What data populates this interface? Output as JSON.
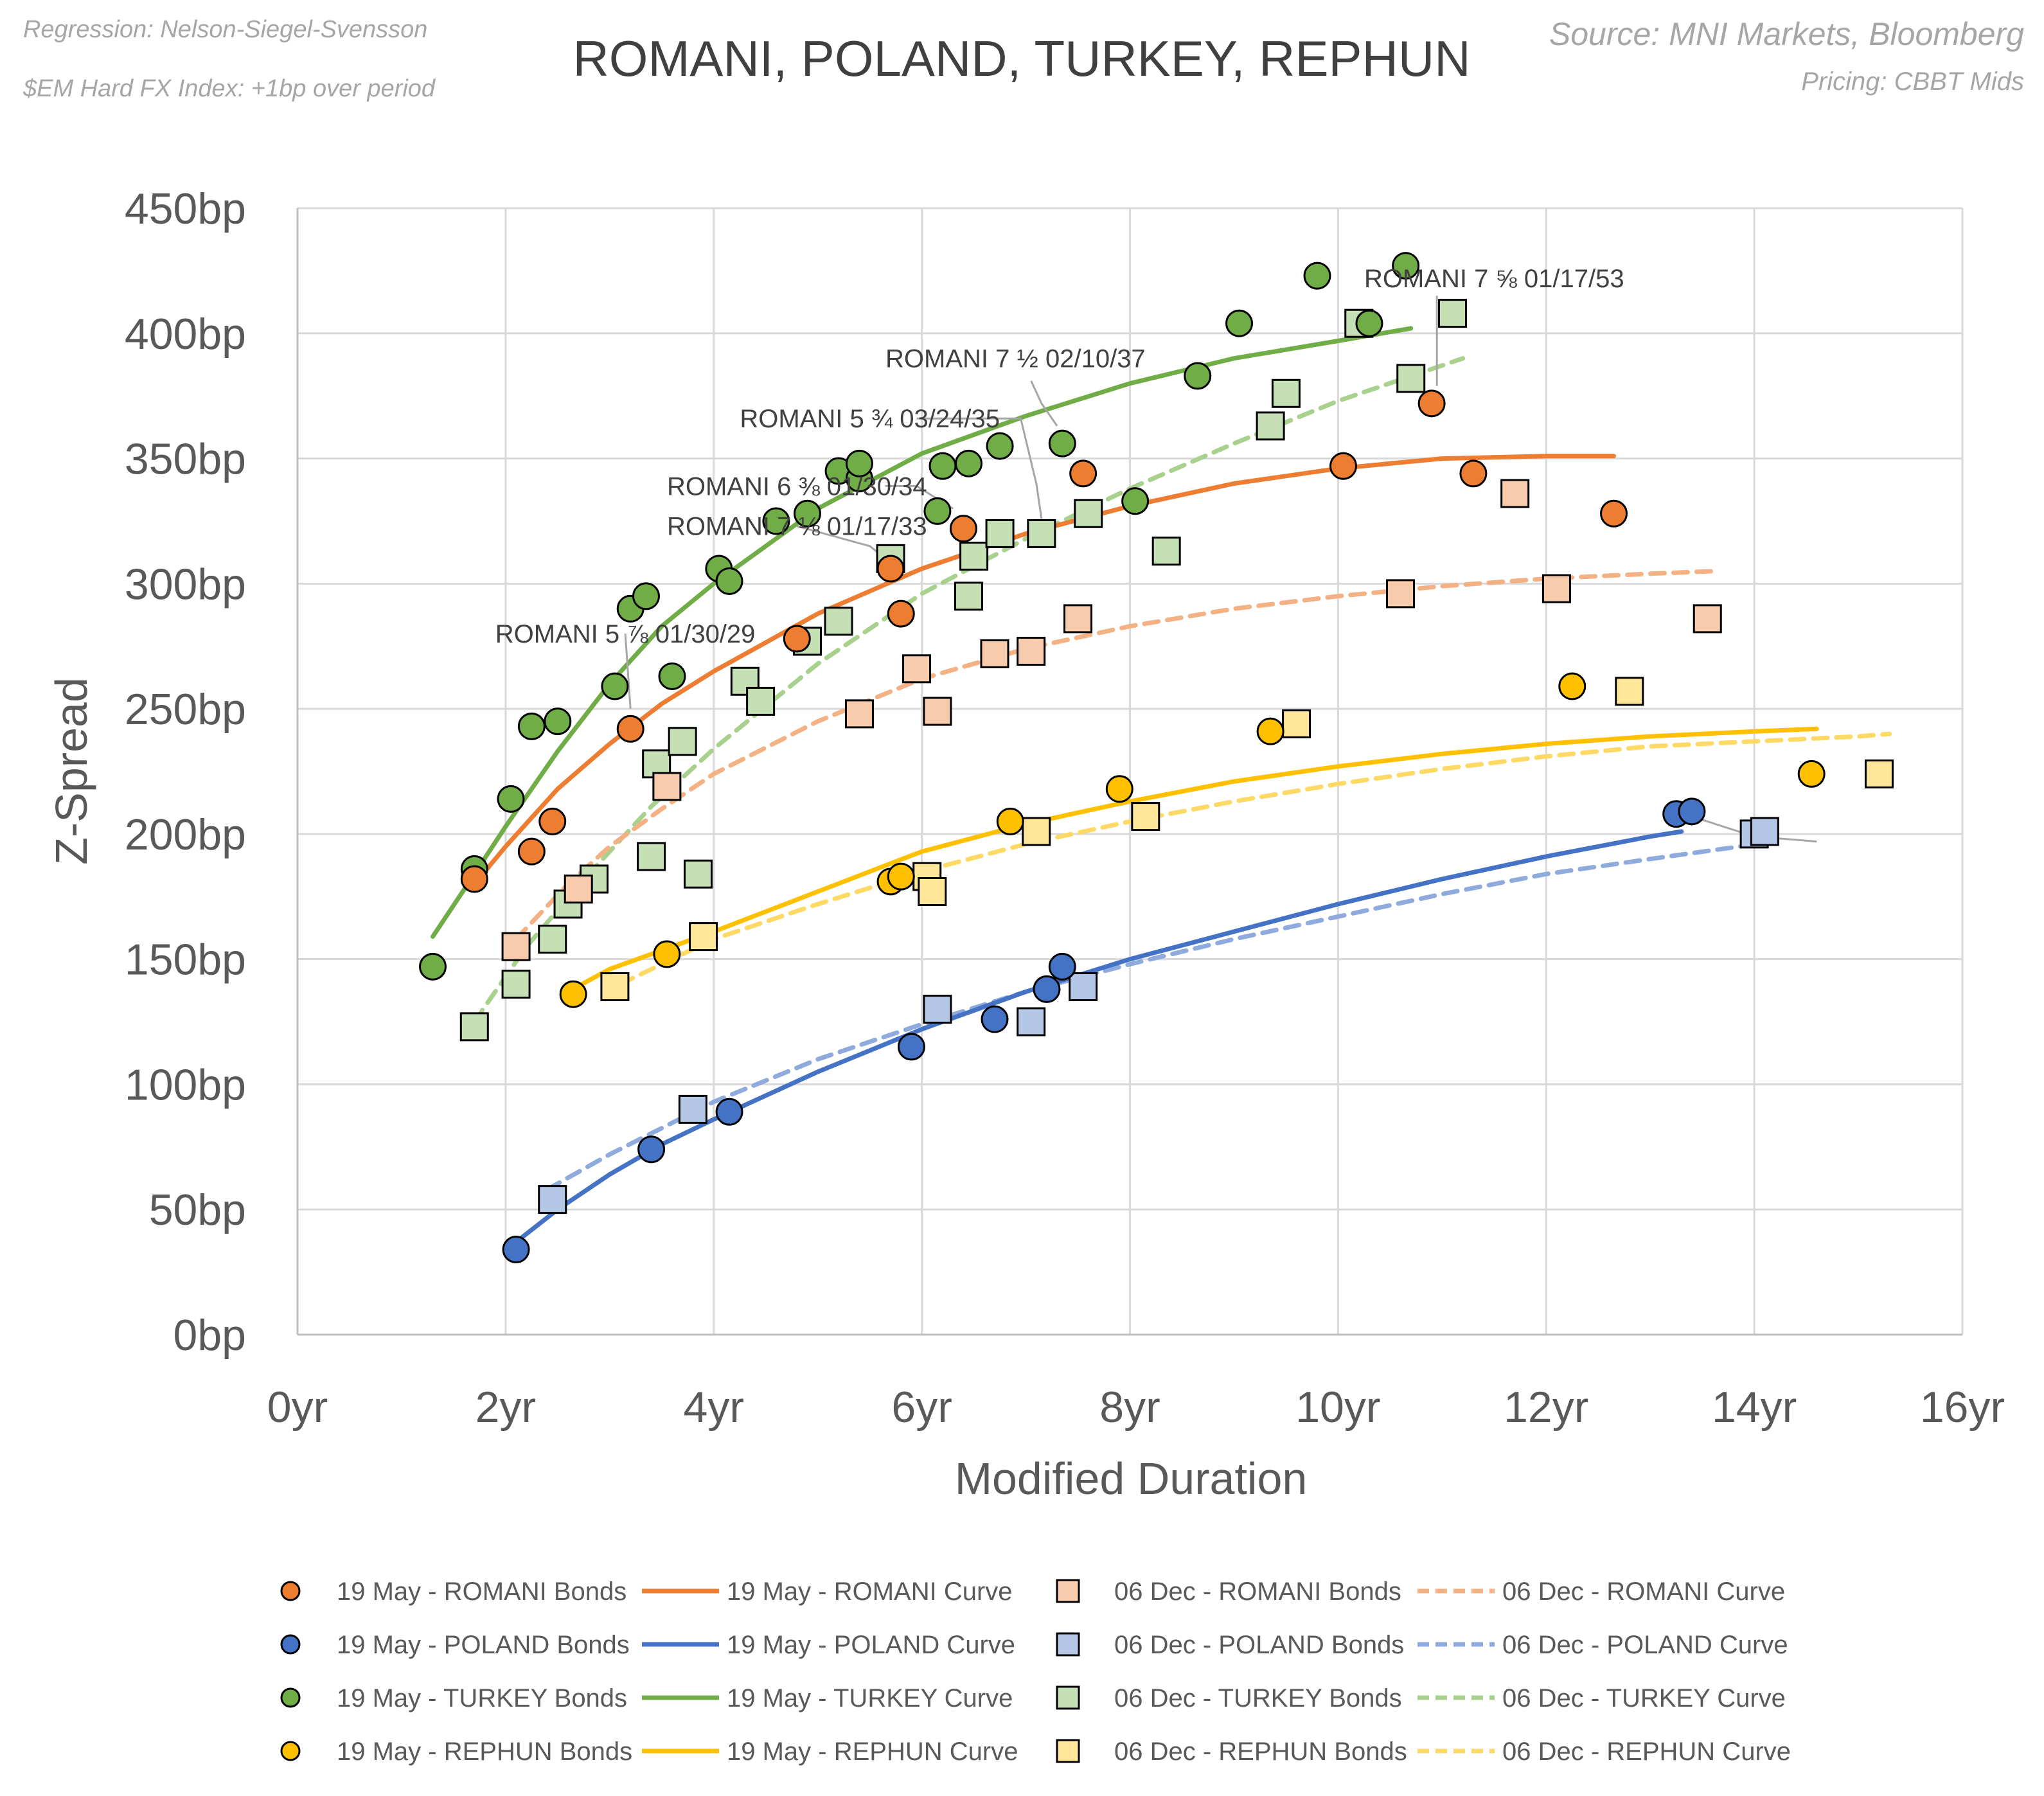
{
  "header": {
    "title": "ROMANI, POLAND, TURKEY, REPHUN",
    "regression_note": "Regression: Nelson-Siegel-Svensson",
    "index_note": "$EM Hard FX Index: +1bp over period",
    "source": "Source: MNI Markets, Bloomberg",
    "pricing": "Pricing: CBBT Mids"
  },
  "colors": {
    "romani_may": "#ED7D31",
    "romani_dec": "#F8CBAD",
    "romani_dec_line": "#F4B183",
    "poland_may": "#4472C4",
    "poland_dec": "#B4C7E7",
    "poland_dec_line": "#8FAADC",
    "turkey_may": "#70AD47",
    "turkey_dec": "#C5E0B4",
    "turkey_dec_line": "#A9D18E",
    "rephun_may": "#FFC000",
    "rephun_dec": "#FFE699",
    "rephun_dec_line": "#FFD966",
    "grid": "#D9D9D9",
    "axis_text": "#595959"
  },
  "chart_data": {
    "type": "scatter",
    "title": "ROMANI, POLAND, TURKEY, REPHUN",
    "xlabel": "Modified Duration",
    "ylabel": "Z-Spread",
    "xlim": [
      0,
      16
    ],
    "ylim": [
      0,
      450
    ],
    "xticks": [
      0,
      2,
      4,
      6,
      8,
      10,
      12,
      14,
      16
    ],
    "yticks": [
      0,
      50,
      100,
      150,
      200,
      250,
      300,
      350,
      400,
      450
    ],
    "xtick_labels": [
      "0yr",
      "2yr",
      "4yr",
      "6yr",
      "8yr",
      "10yr",
      "12yr",
      "14yr",
      "16yr"
    ],
    "ytick_labels": [
      "0bp",
      "50bp",
      "100bp",
      "150bp",
      "200bp",
      "250bp",
      "300bp",
      "350bp",
      "400bp",
      "450bp"
    ],
    "grid": true,
    "legend_position": "bottom",
    "series": [
      {
        "name": "06 Dec - TURKEY Curve",
        "kind": "curve",
        "date": "dec",
        "color": "#A9D18E",
        "dash": true,
        "x": [
          1.7,
          2.2,
          2.8,
          3.4,
          4.0,
          5.0,
          6.0,
          7.0,
          8.0,
          9.0,
          10.0,
          11.2
        ],
        "y": [
          125,
          155,
          184,
          211,
          234,
          268,
          296,
          318,
          338,
          356,
          373,
          390
        ]
      },
      {
        "name": "06 Dec - ROMANI Curve",
        "kind": "curve",
        "date": "dec",
        "color": "#F4B183",
        "dash": true,
        "x": [
          2.1,
          2.6,
          3.0,
          3.5,
          4.0,
          5.0,
          6.0,
          7.0,
          8.0,
          9.0,
          10.0,
          11.0,
          12.0,
          13.0,
          13.6
        ],
        "y": [
          158,
          180,
          195,
          210,
          224,
          245,
          262,
          274,
          283,
          290,
          295,
          299,
          302,
          304,
          305
        ]
      },
      {
        "name": "06 Dec - REPHUN Curve",
        "kind": "curve",
        "date": "dec",
        "color": "#FFD966",
        "dash": true,
        "x": [
          3.1,
          4.0,
          5.0,
          6.0,
          7.0,
          8.0,
          9.0,
          10.0,
          11.0,
          12.0,
          13.0,
          14.0,
          15.0,
          15.3
        ],
        "y": [
          140,
          158,
          172,
          185,
          196,
          205,
          213,
          220,
          226,
          231,
          235,
          237,
          239,
          240
        ]
      },
      {
        "name": "06 Dec - POLAND Curve",
        "kind": "curve",
        "date": "dec",
        "color": "#8FAADC",
        "dash": true,
        "x": [
          2.4,
          3.0,
          4.0,
          5.0,
          6.0,
          7.0,
          8.0,
          9.0,
          10.0,
          11.0,
          12.0,
          13.0,
          14.2
        ],
        "y": [
          58,
          72,
          93,
          110,
          124,
          137,
          148,
          158,
          167,
          176,
          184,
          190,
          197
        ]
      },
      {
        "name": "19 May - TURKEY Curve",
        "kind": "curve",
        "date": "may",
        "color": "#70AD47",
        "dash": false,
        "x": [
          1.3,
          1.7,
          2.0,
          2.5,
          3.0,
          3.5,
          4.0,
          5.0,
          6.0,
          7.0,
          8.0,
          9.0,
          10.0,
          10.7
        ],
        "y": [
          159,
          184,
          203,
          233,
          260,
          283,
          300,
          330,
          352,
          367,
          380,
          390,
          397,
          402
        ]
      },
      {
        "name": "19 May - ROMANI Curve",
        "kind": "curve",
        "date": "may",
        "color": "#ED7D31",
        "dash": false,
        "x": [
          1.7,
          2.0,
          2.5,
          3.0,
          3.5,
          4.0,
          5.0,
          6.0,
          7.0,
          8.0,
          9.0,
          10.0,
          11.0,
          12.0,
          12.65
        ],
        "y": [
          180,
          195,
          218,
          236,
          252,
          265,
          288,
          306,
          320,
          331,
          340,
          346,
          350,
          351,
          351
        ]
      },
      {
        "name": "19 May - REPHUN Curve",
        "kind": "curve",
        "date": "may",
        "color": "#FFC000",
        "dash": false,
        "x": [
          2.6,
          3.0,
          4.0,
          5.0,
          6.0,
          7.0,
          8.0,
          9.0,
          10.0,
          11.0,
          12.0,
          13.0,
          14.0,
          14.6
        ],
        "y": [
          137,
          146,
          161,
          177,
          193,
          204,
          213,
          221,
          227,
          232,
          236,
          239,
          241,
          242
        ]
      },
      {
        "name": "19 May - POLAND Curve",
        "kind": "curve",
        "date": "may",
        "color": "#4472C4",
        "dash": false,
        "x": [
          2.1,
          2.5,
          3.0,
          3.5,
          4.0,
          5.0,
          6.0,
          7.0,
          8.0,
          9.0,
          10.0,
          11.0,
          12.0,
          13.0,
          13.3
        ],
        "y": [
          37,
          50,
          64,
          76,
          86,
          105,
          122,
          137,
          150,
          161,
          172,
          182,
          191,
          199,
          201
        ]
      },
      {
        "name": "06 Dec - TURKEY Bonds",
        "kind": "bonds",
        "marker": "square",
        "date": "dec",
        "color": "#C5E0B4",
        "x": [
          1.7,
          2.1,
          2.45,
          2.6,
          2.85,
          3.4,
          3.45,
          3.7,
          3.85,
          4.3,
          4.45,
          4.9,
          5.2,
          5.7,
          6.45,
          6.5,
          6.75,
          7.15,
          7.6,
          8.35,
          9.35,
          9.5,
          10.2,
          10.7,
          11.1
        ],
        "y": [
          123,
          140,
          158,
          172,
          182,
          191,
          228,
          237,
          184,
          261,
          253,
          277,
          285,
          310,
          295,
          311,
          320,
          320,
          328,
          313,
          363,
          376,
          404,
          382,
          408
        ]
      },
      {
        "name": "06 Dec - ROMANI Bonds",
        "kind": "bonds",
        "marker": "square",
        "date": "dec",
        "color": "#F8CBAD",
        "x": [
          2.1,
          2.7,
          3.55,
          5.4,
          5.95,
          6.15,
          6.7,
          7.05,
          7.5,
          10.6,
          11.7,
          12.1,
          13.55
        ],
        "y": [
          155,
          178,
          219,
          248,
          266,
          249,
          272,
          273,
          286,
          296,
          336,
          298,
          286
        ]
      },
      {
        "name": "06 Dec - REPHUN Bonds",
        "kind": "bonds",
        "marker": "square",
        "date": "dec",
        "color": "#FFE699",
        "x": [
          3.05,
          3.9,
          6.05,
          6.1,
          7.1,
          8.15,
          9.6,
          12.8,
          15.2
        ],
        "y": [
          139,
          159,
          183,
          177,
          201,
          207,
          244,
          257,
          224
        ]
      },
      {
        "name": "06 Dec - POLAND Bonds",
        "kind": "bonds",
        "marker": "square",
        "date": "dec",
        "color": "#B4C7E7",
        "x": [
          2.45,
          3.8,
          6.15,
          7.05,
          7.55,
          14.0,
          14.1
        ],
        "y": [
          54,
          90,
          130,
          125,
          139,
          200,
          201
        ]
      },
      {
        "name": "19 May - TURKEY Bonds",
        "kind": "bonds",
        "marker": "circle",
        "date": "may",
        "color": "#70AD47",
        "x": [
          1.3,
          1.7,
          2.05,
          2.25,
          2.5,
          3.05,
          3.2,
          3.35,
          3.6,
          4.05,
          4.15,
          4.6,
          4.9,
          5.2,
          5.4,
          5.4,
          6.15,
          6.2,
          6.45,
          6.75,
          7.35,
          8.05,
          8.65,
          9.05,
          9.8,
          10.3,
          10.65
        ],
        "y": [
          147,
          186,
          214,
          243,
          245,
          259,
          290,
          295,
          263,
          306,
          301,
          325,
          328,
          345,
          342,
          348,
          329,
          347,
          348,
          355,
          356,
          333,
          383,
          404,
          423,
          404,
          427
        ]
      },
      {
        "name": "19 May - ROMANI Bonds",
        "kind": "bonds",
        "marker": "circle",
        "date": "may",
        "color": "#ED7D31",
        "x": [
          1.7,
          2.25,
          2.45,
          3.2,
          4.8,
          5.7,
          5.8,
          6.4,
          7.55,
          10.05,
          10.9,
          11.3,
          12.65
        ],
        "y": [
          182,
          193,
          205,
          242,
          278,
          306,
          288,
          322,
          344,
          347,
          372,
          344,
          328
        ]
      },
      {
        "name": "19 May - REPHUN Bonds",
        "kind": "bonds",
        "marker": "circle",
        "date": "may",
        "color": "#FFC000",
        "x": [
          2.65,
          3.55,
          5.7,
          5.8,
          6.85,
          7.9,
          9.35,
          12.25,
          14.55
        ],
        "y": [
          136,
          152,
          181,
          183,
          205,
          218,
          241,
          259,
          224
        ]
      },
      {
        "name": "19 May - POLAND Bonds",
        "kind": "bonds",
        "marker": "circle",
        "date": "may",
        "color": "#4472C4",
        "x": [
          2.1,
          3.4,
          4.15,
          5.9,
          6.7,
          7.2,
          7.35,
          13.25,
          13.4
        ],
        "y": [
          34,
          74,
          89,
          115,
          126,
          138,
          147,
          208,
          209
        ]
      }
    ],
    "annotations": [
      {
        "text": "ROMANI 7 ⅝ 01/17/53",
        "point": [
          10.9,
          372
        ],
        "label_at": [
          11.5,
          422
        ],
        "path": [
          [
            10.95,
            415
          ],
          [
            10.95,
            379
          ]
        ]
      },
      {
        "text": "ROMANI 7 ½ 02/10/37",
        "point": [
          7.35,
          356
        ],
        "label_at": [
          6.9,
          390
        ],
        "path": [
          [
            7.05,
            381
          ],
          [
            7.15,
            372
          ],
          [
            7.3,
            363
          ]
        ]
      },
      {
        "text": "ROMANI 5 ¾ 03/24/35",
        "point": [
          7.15,
          320
        ],
        "label_at": [
          5.5,
          366
        ],
        "path": [
          [
            5.95,
            366
          ],
          [
            6.95,
            366
          ],
          [
            7.1,
            340
          ],
          [
            7.15,
            326
          ]
        ]
      },
      {
        "text": "ROMANI 6 ⅜ 01/30/34",
        "point": [
          6.4,
          322
        ],
        "label_at": [
          4.8,
          339
        ],
        "path": [
          [
            5.65,
            339
          ],
          [
            5.95,
            339
          ],
          [
            6.3,
            330
          ]
        ]
      },
      {
        "text": "ROMANI 7 ⅛ 01/17/33",
        "point": [
          5.7,
          306
        ],
        "label_at": [
          4.8,
          323
        ],
        "path": [
          [
            4.8,
            323
          ],
          [
            5.5,
            315
          ],
          [
            5.65,
            310
          ]
        ]
      },
      {
        "text": "ROMANI 5 ⅞ 01/30/29",
        "point": [
          3.2,
          242
        ],
        "label_at": [
          3.15,
          280
        ],
        "path": [
          [
            3.15,
            280
          ],
          [
            3.2,
            250
          ]
        ]
      },
      {
        "text": "",
        "point": [
          13.4,
          209
        ],
        "label_at": [
          14.6,
          197
        ],
        "path": [
          [
            13.4,
            207
          ],
          [
            14.0,
            199
          ],
          [
            14.6,
            197
          ]
        ]
      }
    ],
    "legend": [
      [
        "19 May - ROMANI Bonds",
        "19 May - ROMANI Curve",
        "06 Dec - ROMANI Bonds",
        "06 Dec - ROMANI Curve"
      ],
      [
        "19 May - POLAND Bonds",
        "19 May - POLAND Curve",
        "06 Dec - POLAND Bonds",
        "06 Dec - POLAND Curve"
      ],
      [
        "19 May - TURKEY Bonds",
        "19 May - TURKEY Curve",
        "06 Dec - TURKEY Bonds",
        "06 Dec - TURKEY Curve"
      ],
      [
        "19 May - REPHUN Bonds",
        "19 May - REPHUN Curve",
        "06 Dec - REPHUN Bonds",
        "06 Dec - REPHUN Curve"
      ]
    ]
  }
}
